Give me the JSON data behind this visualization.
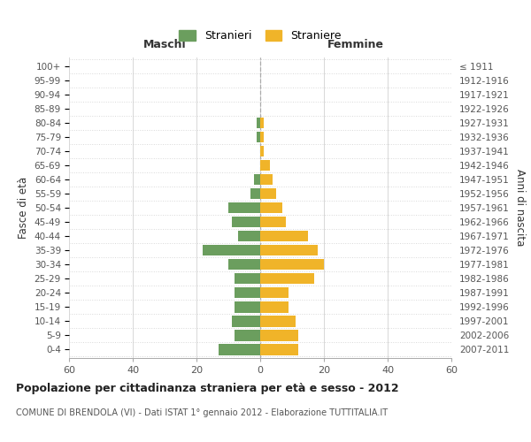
{
  "age_groups": [
    "0-4",
    "5-9",
    "10-14",
    "15-19",
    "20-24",
    "25-29",
    "30-34",
    "35-39",
    "40-44",
    "45-49",
    "50-54",
    "55-59",
    "60-64",
    "65-69",
    "70-74",
    "75-79",
    "80-84",
    "85-89",
    "90-94",
    "95-99",
    "100+"
  ],
  "birth_years": [
    "2007-2011",
    "2002-2006",
    "1997-2001",
    "1992-1996",
    "1987-1991",
    "1982-1986",
    "1977-1981",
    "1972-1976",
    "1967-1971",
    "1962-1966",
    "1957-1961",
    "1952-1956",
    "1947-1951",
    "1942-1946",
    "1937-1941",
    "1932-1936",
    "1927-1931",
    "1922-1926",
    "1917-1921",
    "1912-1916",
    "≤ 1911"
  ],
  "males": [
    13,
    8,
    9,
    8,
    8,
    8,
    10,
    18,
    7,
    9,
    10,
    3,
    2,
    0,
    0,
    1,
    1,
    0,
    0,
    0,
    0
  ],
  "females": [
    12,
    12,
    11,
    9,
    9,
    17,
    20,
    18,
    15,
    8,
    7,
    5,
    4,
    3,
    1,
    1,
    1,
    0,
    0,
    0,
    0
  ],
  "male_color": "#6b9e5e",
  "female_color": "#f0b429",
  "title": "Popolazione per cittadinanza straniera per età e sesso - 2012",
  "subtitle": "COMUNE DI BRENDOLA (VI) - Dati ISTAT 1° gennaio 2012 - Elaborazione TUTTITALIA.IT",
  "xlabel_left": "Maschi",
  "xlabel_right": "Femmine",
  "ylabel_left": "Fasce di età",
  "ylabel_right": "Anni di nascita",
  "legend_male": "Stranieri",
  "legend_female": "Straniere",
  "xlim": 60,
  "background_color": "#ffffff",
  "grid_color": "#d8d8d8"
}
